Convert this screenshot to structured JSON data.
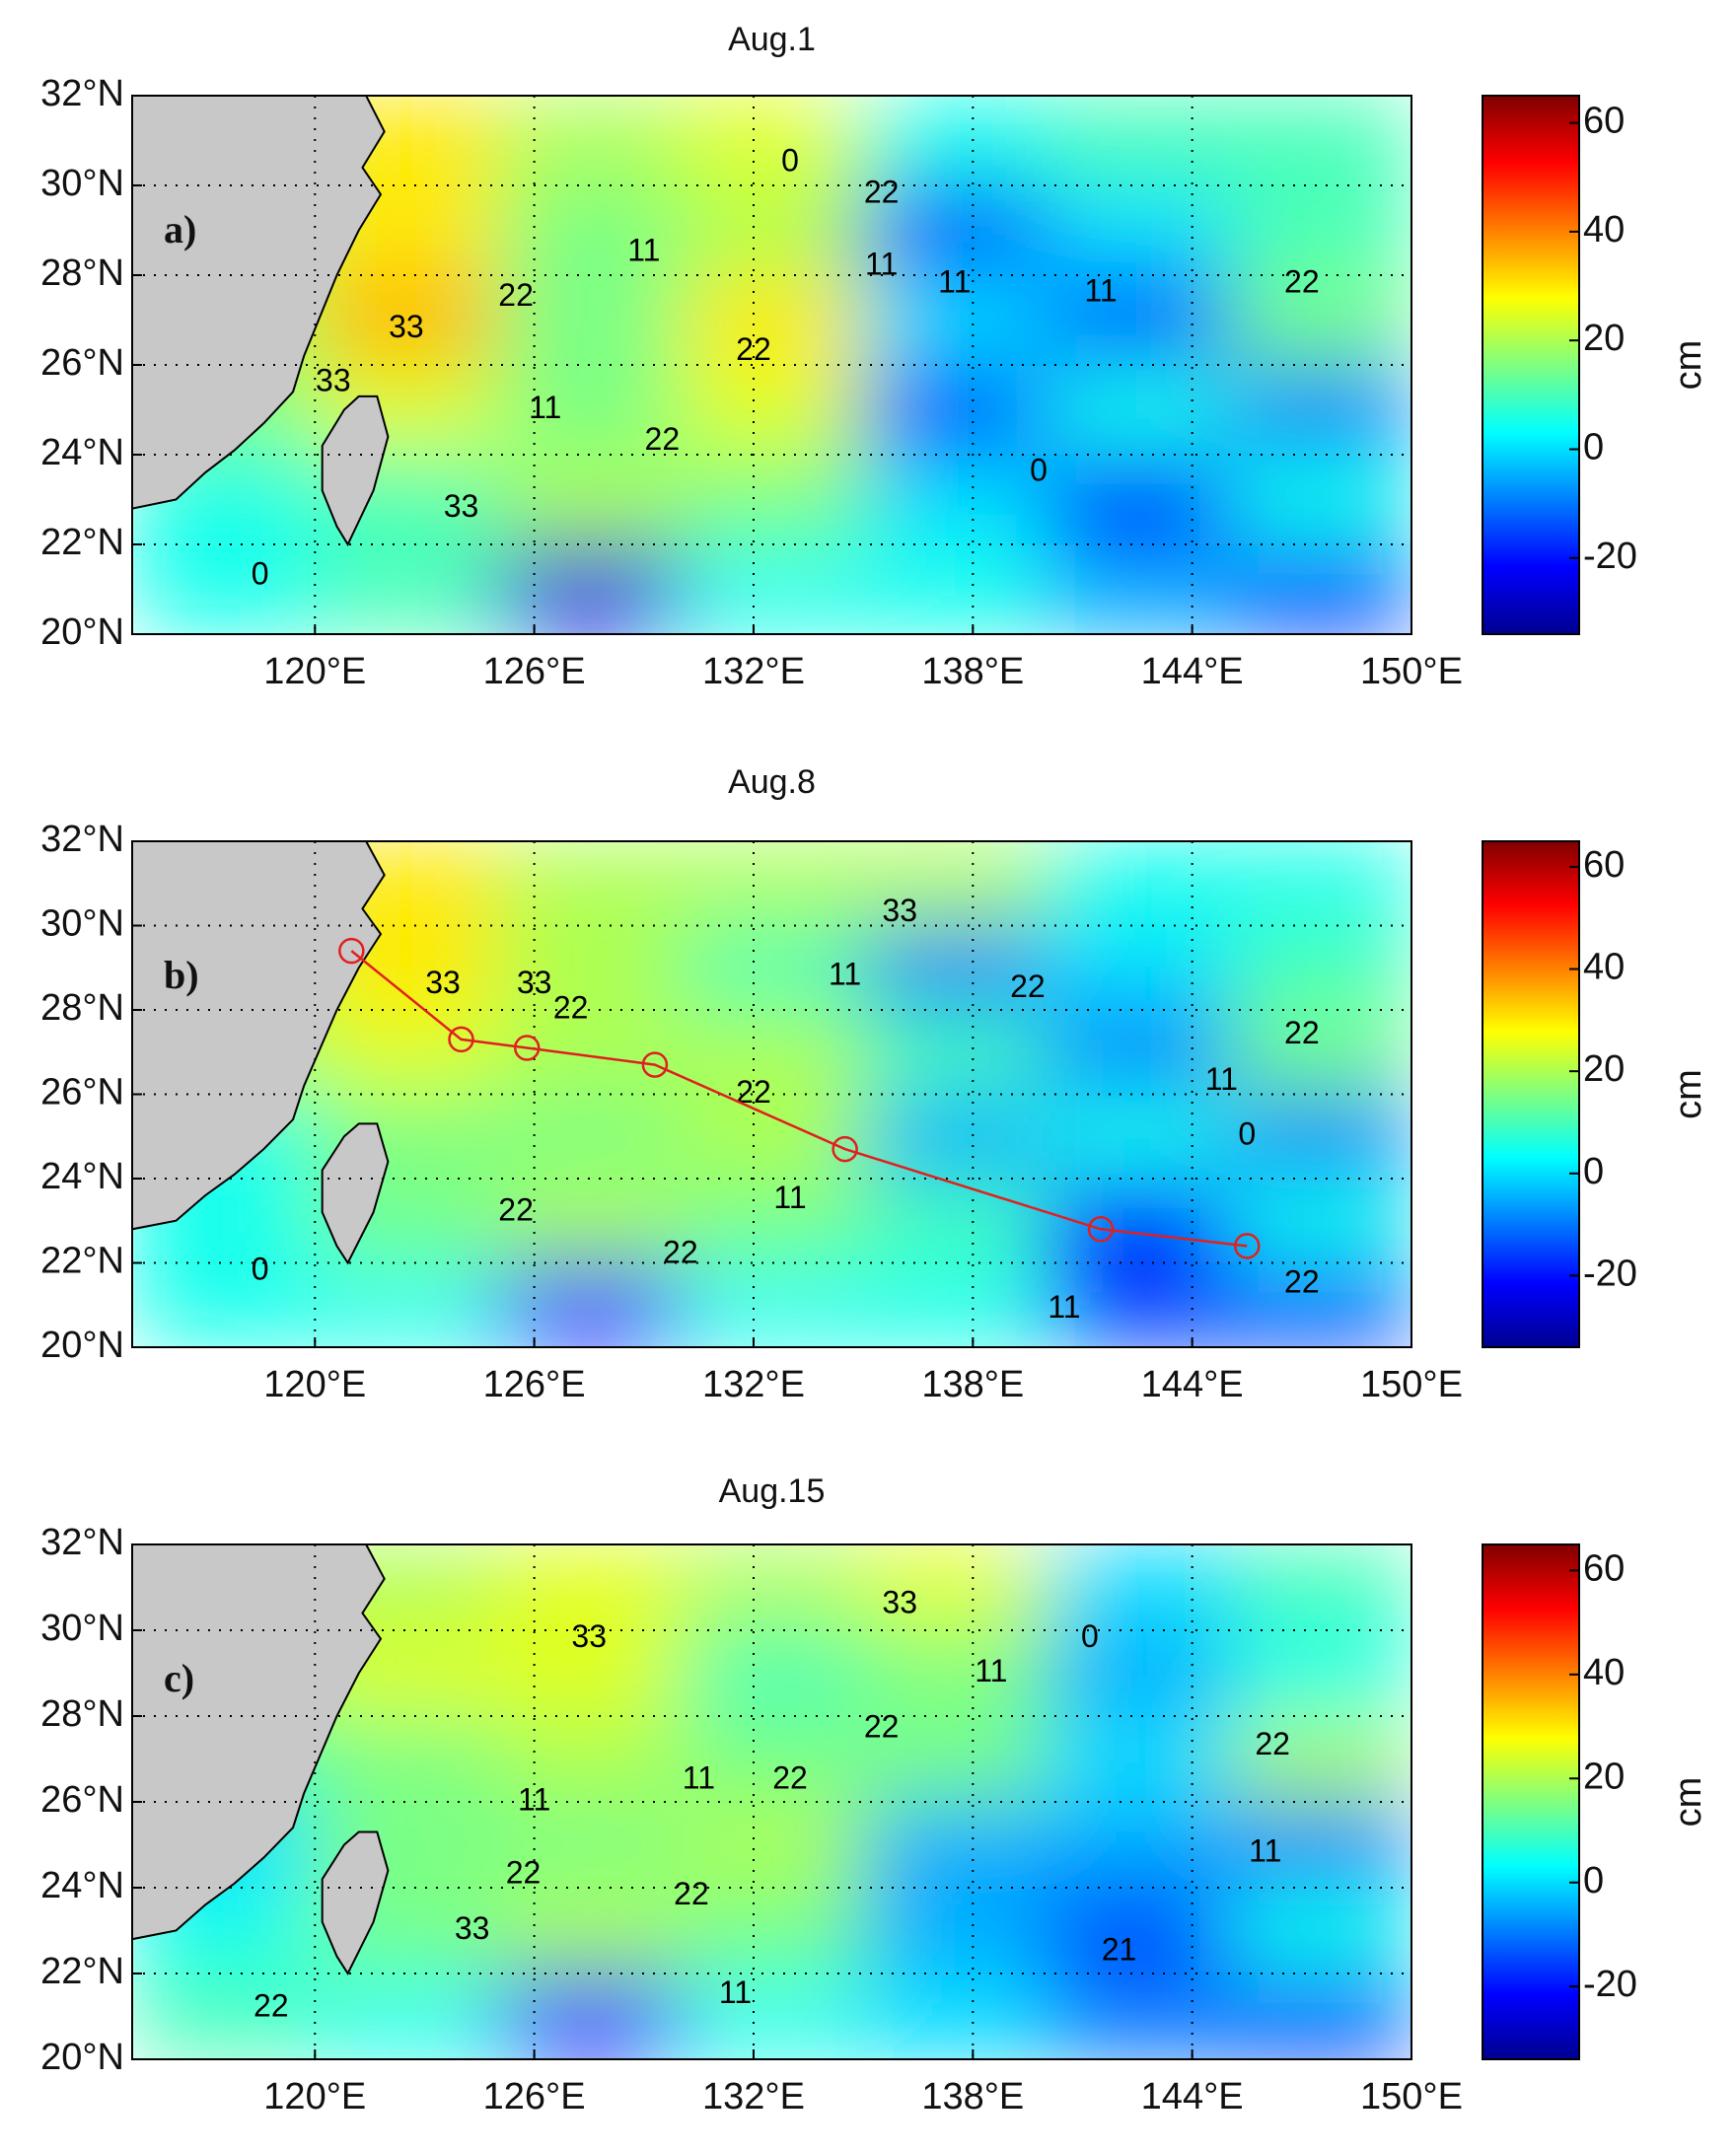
{
  "chart_data": [
    {
      "type": "contour",
      "title": "Aug.1",
      "panel_label": "a)",
      "xlim": [
        115,
        150
      ],
      "ylim": [
        20,
        32
      ],
      "xticks": [
        {
          "value": 120,
          "label": "120°E"
        },
        {
          "value": 126,
          "label": "126°E"
        },
        {
          "value": 132,
          "label": "132°E"
        },
        {
          "value": 138,
          "label": "138°E"
        },
        {
          "value": 144,
          "label": "144°E"
        },
        {
          "value": 150,
          "label": "150°E"
        }
      ],
      "yticks": [
        {
          "value": 20,
          "label": "20°N"
        },
        {
          "value": 22,
          "label": "22°N"
        },
        {
          "value": 24,
          "label": "24°N"
        },
        {
          "value": 26,
          "label": "26°N"
        },
        {
          "value": 28,
          "label": "28°N"
        },
        {
          "value": 30,
          "label": "30°N"
        },
        {
          "value": 32,
          "label": "32°N"
        }
      ],
      "grid": true,
      "lon": [
        117.5,
        122.5,
        127.5,
        132.5,
        137.5,
        142.5,
        147.5
      ],
      "lat": [
        31,
        29,
        27,
        25,
        23,
        21
      ],
      "z": [
        [
          20,
          30,
          20,
          25,
          5,
          10,
          10
        ],
        [
          20,
          30,
          15,
          20,
          -15,
          0,
          10
        ],
        [
          20,
          35,
          15,
          30,
          0,
          -15,
          15
        ],
        [
          15,
          25,
          15,
          25,
          -15,
          5,
          -10
        ],
        [
          5,
          10,
          20,
          15,
          0,
          -20,
          5
        ],
        [
          5,
          10,
          -25,
          5,
          5,
          -5,
          -15
        ]
      ],
      "clim": [
        -34,
        65
      ],
      "cticks": [
        -20,
        0,
        20,
        40,
        60
      ],
      "colorbar_label": "cm",
      "contour_labels": [
        {
          "lon": 125.5,
          "lat": 27.5,
          "value": 22
        },
        {
          "lon": 122.5,
          "lat": 26.8,
          "value": 33
        },
        {
          "lon": 120.5,
          "lat": 25.6,
          "value": 33
        },
        {
          "lon": 124,
          "lat": 22.8,
          "value": 33
        },
        {
          "lon": 132,
          "lat": 26.3,
          "value": 22
        },
        {
          "lon": 129.5,
          "lat": 24.3,
          "value": 22
        },
        {
          "lon": 129,
          "lat": 28.5,
          "value": 11
        },
        {
          "lon": 137.5,
          "lat": 27.8,
          "value": 11
        },
        {
          "lon": 141.5,
          "lat": 27.6,
          "value": 11
        },
        {
          "lon": 147,
          "lat": 27.8,
          "value": 22
        },
        {
          "lon": 135.5,
          "lat": 29.8,
          "value": 22
        },
        {
          "lon": 139.8,
          "lat": 23.6,
          "value": 0
        },
        {
          "lon": 135.5,
          "lat": 28.2,
          "value": 11
        },
        {
          "lon": 126.3,
          "lat": 25,
          "value": 11
        },
        {
          "lon": 118.5,
          "lat": 21.3,
          "value": 0
        },
        {
          "lon": 133,
          "lat": 30.5,
          "value": 0
        }
      ]
    },
    {
      "type": "contour",
      "title": "Aug.8",
      "panel_label": "b)",
      "xlim": [
        115,
        150
      ],
      "ylim": [
        20,
        32
      ],
      "xticks": [
        {
          "value": 120,
          "label": "120°E"
        },
        {
          "value": 126,
          "label": "126°E"
        },
        {
          "value": 132,
          "label": "132°E"
        },
        {
          "value": 138,
          "label": "138°E"
        },
        {
          "value": 144,
          "label": "144°E"
        },
        {
          "value": 150,
          "label": "150°E"
        }
      ],
      "yticks": [
        {
          "value": 20,
          "label": "20°N"
        },
        {
          "value": 22,
          "label": "22°N"
        },
        {
          "value": 24,
          "label": "24°N"
        },
        {
          "value": 26,
          "label": "26°N"
        },
        {
          "value": 28,
          "label": "28°N"
        },
        {
          "value": 30,
          "label": "30°N"
        },
        {
          "value": 32,
          "label": "32°N"
        }
      ],
      "grid": true,
      "lon": [
        117.5,
        122.5,
        127.5,
        132.5,
        137.5,
        142.5,
        147.5
      ],
      "lat": [
        31,
        29,
        27,
        25,
        23,
        21
      ],
      "z": [
        [
          20,
          30,
          20,
          20,
          20,
          5,
          5
        ],
        [
          20,
          30,
          20,
          10,
          -10,
          0,
          10
        ],
        [
          20,
          25,
          20,
          20,
          10,
          -10,
          15
        ],
        [
          5,
          15,
          15,
          20,
          -5,
          5,
          -10
        ],
        [
          5,
          15,
          20,
          15,
          10,
          -20,
          5
        ],
        [
          5,
          5,
          -20,
          5,
          5,
          -15,
          -15
        ]
      ],
      "clim": [
        -34,
        65
      ],
      "cticks": [
        -20,
        0,
        20,
        40,
        60
      ],
      "colorbar_label": "cm",
      "track": {
        "color": "#e0201f",
        "lon": [
          121,
          124,
          125.8,
          129.3,
          134.5,
          141.5,
          145.5
        ],
        "lat": [
          29.4,
          27.3,
          27.1,
          26.7,
          24.7,
          22.8,
          22.4
        ]
      },
      "contour_labels": [
        {
          "lon": 123.5,
          "lat": 28.6,
          "value": 33
        },
        {
          "lon": 126,
          "lat": 28.6,
          "value": 33
        },
        {
          "lon": 127,
          "lat": 28,
          "value": 22
        },
        {
          "lon": 136,
          "lat": 30.3,
          "value": 33
        },
        {
          "lon": 132,
          "lat": 26,
          "value": 22
        },
        {
          "lon": 125.5,
          "lat": 23.2,
          "value": 22
        },
        {
          "lon": 130,
          "lat": 22.2,
          "value": 22
        },
        {
          "lon": 134.5,
          "lat": 28.8,
          "value": 11
        },
        {
          "lon": 139.5,
          "lat": 28.5,
          "value": 22
        },
        {
          "lon": 144.8,
          "lat": 26.3,
          "value": 11
        },
        {
          "lon": 147,
          "lat": 27.4,
          "value": 22
        },
        {
          "lon": 133,
          "lat": 23.5,
          "value": 11
        },
        {
          "lon": 145.5,
          "lat": 25,
          "value": 0
        },
        {
          "lon": 118.5,
          "lat": 21.8,
          "value": 0
        },
        {
          "lon": 140.5,
          "lat": 20.9,
          "value": 11
        },
        {
          "lon": 147,
          "lat": 21.5,
          "value": 22
        }
      ]
    },
    {
      "type": "contour",
      "title": "Aug.15",
      "panel_label": "c)",
      "xlim": [
        115,
        150
      ],
      "ylim": [
        20,
        32
      ],
      "xticks": [
        {
          "value": 120,
          "label": "120°E"
        },
        {
          "value": 126,
          "label": "126°E"
        },
        {
          "value": 132,
          "label": "132°E"
        },
        {
          "value": 138,
          "label": "138°E"
        },
        {
          "value": 144,
          "label": "144°E"
        },
        {
          "value": 150,
          "label": "150°E"
        }
      ],
      "yticks": [
        {
          "value": 20,
          "label": "20°N"
        },
        {
          "value": 22,
          "label": "22°N"
        },
        {
          "value": 24,
          "label": "24°N"
        },
        {
          "value": 26,
          "label": "26°N"
        },
        {
          "value": 28,
          "label": "28°N"
        },
        {
          "value": 30,
          "label": "30°N"
        },
        {
          "value": 32,
          "label": "32°N"
        }
      ],
      "grid": true,
      "lon": [
        117.5,
        122.5,
        127.5,
        132.5,
        137.5,
        142.5,
        147.5
      ],
      "lat": [
        31,
        29,
        27,
        25,
        23,
        21
      ],
      "z": [
        [
          20,
          20,
          25,
          20,
          25,
          0,
          10
        ],
        [
          20,
          25,
          25,
          10,
          15,
          -5,
          5
        ],
        [
          10,
          15,
          20,
          15,
          15,
          0,
          20
        ],
        [
          0,
          15,
          15,
          20,
          -5,
          -5,
          -10
        ],
        [
          5,
          15,
          20,
          15,
          -5,
          -15,
          5
        ],
        [
          10,
          5,
          -20,
          5,
          0,
          -10,
          -15
        ]
      ],
      "clim": [
        -34,
        65
      ],
      "cticks": [
        -20,
        0,
        20,
        40,
        60
      ],
      "colorbar_label": "cm",
      "contour_labels": [
        {
          "lon": 127.5,
          "lat": 29.8,
          "value": 33
        },
        {
          "lon": 136,
          "lat": 30.6,
          "value": 33
        },
        {
          "lon": 135.5,
          "lat": 27.7,
          "value": 22
        },
        {
          "lon": 133,
          "lat": 26.5,
          "value": 22
        },
        {
          "lon": 125.7,
          "lat": 24.3,
          "value": 22
        },
        {
          "lon": 124.3,
          "lat": 23,
          "value": 33
        },
        {
          "lon": 130.3,
          "lat": 23.8,
          "value": 22
        },
        {
          "lon": 126,
          "lat": 26,
          "value": 11
        },
        {
          "lon": 130.5,
          "lat": 26.5,
          "value": 11
        },
        {
          "lon": 138.5,
          "lat": 29,
          "value": 11
        },
        {
          "lon": 141.2,
          "lat": 29.8,
          "value": 0
        },
        {
          "lon": 146.2,
          "lat": 27.3,
          "value": 22
        },
        {
          "lon": 146,
          "lat": 24.8,
          "value": 11
        },
        {
          "lon": 131.5,
          "lat": 21.5,
          "value": 11
        },
        {
          "lon": 142,
          "lat": 22.5,
          "value": 21
        },
        {
          "lon": 118.8,
          "lat": 21.2,
          "value": 22
        }
      ]
    }
  ]
}
